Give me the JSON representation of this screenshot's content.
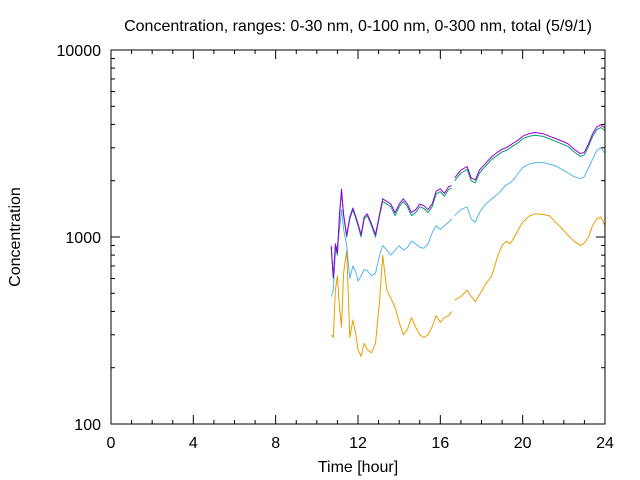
{
  "chart_data": {
    "type": "line",
    "title": "Concentration, ranges: 0-30 nm, 0-100 nm, 0-300 nm, total (5/9/1)",
    "xlabel": "Time [hour]",
    "ylabel": "Concentration",
    "xlim": [
      0,
      24
    ],
    "ylim": [
      100,
      10000
    ],
    "yscale": "log",
    "x_ticks": [
      0,
      4,
      8,
      12,
      16,
      20,
      24
    ],
    "x_tick_labels": [
      "0",
      "4",
      "8",
      "12",
      "16",
      "20",
      "24"
    ],
    "y_ticks": [
      100,
      1000,
      10000
    ],
    "y_tick_labels": [
      "100",
      "1000",
      "10000"
    ],
    "grid": false,
    "legend": "none",
    "series": [
      {
        "color": "#e69f00",
        "segments": [
          [
            [
              10.7,
              300
            ],
            [
              10.8,
              290
            ],
            [
              10.9,
              520
            ],
            [
              11.0,
              620
            ],
            [
              11.1,
              420
            ],
            [
              11.2,
              330
            ],
            [
              11.3,
              640
            ],
            [
              11.45,
              850
            ],
            [
              11.6,
              290
            ],
            [
              11.75,
              360
            ],
            [
              11.9,
              300
            ],
            [
              12.0,
              250
            ],
            [
              12.15,
              230
            ],
            [
              12.3,
              270
            ],
            [
              12.45,
              250
            ],
            [
              12.65,
              240
            ],
            [
              12.85,
              270
            ],
            [
              13.05,
              460
            ],
            [
              13.2,
              800
            ],
            [
              13.4,
              520
            ],
            [
              13.6,
              470
            ],
            [
              13.8,
              420
            ],
            [
              14.0,
              350
            ],
            [
              14.2,
              300
            ],
            [
              14.4,
              320
            ],
            [
              14.6,
              370
            ],
            [
              14.8,
              330
            ],
            [
              15.0,
              300
            ],
            [
              15.2,
              290
            ],
            [
              15.4,
              300
            ],
            [
              15.6,
              330
            ],
            [
              15.8,
              380
            ],
            [
              16.0,
              350
            ],
            [
              16.2,
              370
            ],
            [
              16.4,
              380
            ],
            [
              16.55,
              400
            ]
          ],
          [
            [
              16.7,
              460
            ],
            [
              17.0,
              480
            ],
            [
              17.3,
              520
            ],
            [
              17.5,
              480
            ],
            [
              17.7,
              450
            ],
            [
              17.9,
              490
            ],
            [
              18.2,
              560
            ],
            [
              18.5,
              620
            ],
            [
              18.8,
              800
            ],
            [
              19.0,
              900
            ],
            [
              19.2,
              950
            ],
            [
              19.4,
              920
            ],
            [
              19.6,
              1000
            ],
            [
              19.8,
              1100
            ],
            [
              20.0,
              1200
            ],
            [
              20.3,
              1290
            ],
            [
              20.6,
              1330
            ],
            [
              21.0,
              1320
            ],
            [
              21.3,
              1300
            ],
            [
              21.6,
              1200
            ],
            [
              21.9,
              1110
            ],
            [
              22.2,
              1020
            ],
            [
              22.5,
              950
            ],
            [
              22.8,
              900
            ],
            [
              23.0,
              930
            ],
            [
              23.2,
              1000
            ],
            [
              23.4,
              1150
            ],
            [
              23.6,
              1250
            ],
            [
              23.8,
              1280
            ],
            [
              24.0,
              1150
            ]
          ]
        ]
      },
      {
        "color": "#56b4e9",
        "segments": [
          [
            [
              10.7,
              480
            ],
            [
              10.8,
              520
            ],
            [
              10.9,
              820
            ],
            [
              11.0,
              900
            ],
            [
              11.1,
              1100
            ],
            [
              11.2,
              1400
            ],
            [
              11.3,
              1100
            ],
            [
              11.45,
              900
            ],
            [
              11.6,
              600
            ],
            [
              11.75,
              700
            ],
            [
              11.9,
              650
            ],
            [
              12.0,
              580
            ],
            [
              12.15,
              620
            ],
            [
              12.3,
              670
            ],
            [
              12.45,
              660
            ],
            [
              12.65,
              620
            ],
            [
              12.85,
              640
            ],
            [
              13.05,
              800
            ],
            [
              13.2,
              900
            ],
            [
              13.4,
              850
            ],
            [
              13.6,
              800
            ],
            [
              13.8,
              850
            ],
            [
              14.0,
              900
            ],
            [
              14.2,
              850
            ],
            [
              14.4,
              880
            ],
            [
              14.6,
              950
            ],
            [
              14.8,
              920
            ],
            [
              15.0,
              880
            ],
            [
              15.2,
              870
            ],
            [
              15.4,
              920
            ],
            [
              15.6,
              1050
            ],
            [
              15.8,
              1150
            ],
            [
              16.0,
              1100
            ],
            [
              16.2,
              1150
            ],
            [
              16.4,
              1200
            ],
            [
              16.55,
              1250
            ]
          ],
          [
            [
              16.7,
              1300
            ],
            [
              17.0,
              1400
            ],
            [
              17.3,
              1450
            ],
            [
              17.5,
              1250
            ],
            [
              17.7,
              1200
            ],
            [
              17.9,
              1350
            ],
            [
              18.2,
              1500
            ],
            [
              18.5,
              1600
            ],
            [
              18.8,
              1700
            ],
            [
              19.0,
              1800
            ],
            [
              19.2,
              1900
            ],
            [
              19.4,
              1950
            ],
            [
              19.6,
              2050
            ],
            [
              19.8,
              2200
            ],
            [
              20.0,
              2350
            ],
            [
              20.3,
              2450
            ],
            [
              20.6,
              2500
            ],
            [
              21.0,
              2500
            ],
            [
              21.3,
              2450
            ],
            [
              21.6,
              2400
            ],
            [
              21.9,
              2300
            ],
            [
              22.2,
              2200
            ],
            [
              22.5,
              2100
            ],
            [
              22.8,
              2050
            ],
            [
              23.0,
              2100
            ],
            [
              23.2,
              2350
            ],
            [
              23.4,
              2600
            ],
            [
              23.6,
              2900
            ],
            [
              23.8,
              3000
            ],
            [
              24.0,
              2800
            ]
          ]
        ]
      },
      {
        "color": "#009e73",
        "segments": [
          [
            [
              10.7,
              880
            ],
            [
              10.8,
              600
            ],
            [
              10.9,
              900
            ],
            [
              11.0,
              800
            ],
            [
              11.1,
              1300
            ],
            [
              11.2,
              1750
            ],
            [
              11.3,
              1300
            ],
            [
              11.45,
              1000
            ],
            [
              11.6,
              1250
            ],
            [
              11.75,
              1400
            ],
            [
              11.9,
              1250
            ],
            [
              12.0,
              1150
            ],
            [
              12.15,
              1000
            ],
            [
              12.3,
              1250
            ],
            [
              12.45,
              1300
            ],
            [
              12.65,
              1150
            ],
            [
              12.85,
              1000
            ],
            [
              13.05,
              1300
            ],
            [
              13.2,
              1550
            ],
            [
              13.4,
              1500
            ],
            [
              13.6,
              1450
            ],
            [
              13.8,
              1300
            ],
            [
              14.0,
              1450
            ],
            [
              14.2,
              1550
            ],
            [
              14.4,
              1450
            ],
            [
              14.6,
              1300
            ],
            [
              14.8,
              1350
            ],
            [
              15.0,
              1450
            ],
            [
              15.2,
              1420
            ],
            [
              15.4,
              1350
            ],
            [
              15.6,
              1450
            ],
            [
              15.8,
              1700
            ],
            [
              16.0,
              1750
            ],
            [
              16.2,
              1650
            ],
            [
              16.4,
              1800
            ],
            [
              16.55,
              1820
            ]
          ],
          [
            [
              16.7,
              2000
            ],
            [
              17.0,
              2200
            ],
            [
              17.3,
              2300
            ],
            [
              17.5,
              2000
            ],
            [
              17.7,
              1950
            ],
            [
              17.9,
              2200
            ],
            [
              18.2,
              2400
            ],
            [
              18.5,
              2600
            ],
            [
              18.8,
              2750
            ],
            [
              19.0,
              2850
            ],
            [
              19.2,
              2900
            ],
            [
              19.4,
              3000
            ],
            [
              19.6,
              3100
            ],
            [
              19.8,
              3200
            ],
            [
              20.0,
              3350
            ],
            [
              20.3,
              3450
            ],
            [
              20.6,
              3500
            ],
            [
              21.0,
              3450
            ],
            [
              21.3,
              3350
            ],
            [
              21.6,
              3250
            ],
            [
              21.9,
              3150
            ],
            [
              22.2,
              3050
            ],
            [
              22.5,
              2850
            ],
            [
              22.8,
              2700
            ],
            [
              23.0,
              2750
            ],
            [
              23.2,
              3050
            ],
            [
              23.4,
              3450
            ],
            [
              23.6,
              3750
            ],
            [
              23.8,
              3850
            ],
            [
              24.0,
              3700
            ]
          ]
        ]
      },
      {
        "color": "#9400d3",
        "segments": [
          [
            [
              10.7,
              900
            ],
            [
              10.8,
              610
            ],
            [
              10.9,
              920
            ],
            [
              11.0,
              820
            ],
            [
              11.1,
              1320
            ],
            [
              11.2,
              1800
            ],
            [
              11.3,
              1320
            ],
            [
              11.45,
              1020
            ],
            [
              11.6,
              1280
            ],
            [
              11.75,
              1430
            ],
            [
              11.9,
              1280
            ],
            [
              12.0,
              1180
            ],
            [
              12.15,
              1030
            ],
            [
              12.3,
              1280
            ],
            [
              12.45,
              1330
            ],
            [
              12.65,
              1180
            ],
            [
              12.85,
              1030
            ],
            [
              13.05,
              1330
            ],
            [
              13.2,
              1600
            ],
            [
              13.4,
              1550
            ],
            [
              13.6,
              1500
            ],
            [
              13.8,
              1350
            ],
            [
              14.0,
              1500
            ],
            [
              14.2,
              1600
            ],
            [
              14.4,
              1500
            ],
            [
              14.6,
              1350
            ],
            [
              14.8,
              1400
            ],
            [
              15.0,
              1500
            ],
            [
              15.2,
              1470
            ],
            [
              15.4,
              1400
            ],
            [
              15.6,
              1500
            ],
            [
              15.8,
              1760
            ],
            [
              16.0,
              1810
            ],
            [
              16.2,
              1710
            ],
            [
              16.4,
              1860
            ],
            [
              16.55,
              1880
            ]
          ],
          [
            [
              16.7,
              2070
            ],
            [
              17.0,
              2280
            ],
            [
              17.3,
              2380
            ],
            [
              17.5,
              2070
            ],
            [
              17.7,
              2020
            ],
            [
              17.9,
              2280
            ],
            [
              18.2,
              2480
            ],
            [
              18.5,
              2690
            ],
            [
              18.8,
              2850
            ],
            [
              19.0,
              2950
            ],
            [
              19.2,
              3000
            ],
            [
              19.4,
              3100
            ],
            [
              19.6,
              3200
            ],
            [
              19.8,
              3310
            ],
            [
              20.0,
              3460
            ],
            [
              20.3,
              3570
            ],
            [
              20.6,
              3620
            ],
            [
              21.0,
              3570
            ],
            [
              21.3,
              3460
            ],
            [
              21.6,
              3360
            ],
            [
              21.9,
              3260
            ],
            [
              22.2,
              3150
            ],
            [
              22.5,
              2950
            ],
            [
              22.8,
              2790
            ],
            [
              23.0,
              2840
            ],
            [
              23.2,
              3150
            ],
            [
              23.4,
              3570
            ],
            [
              23.6,
              3880
            ],
            [
              23.8,
              3980
            ],
            [
              24.0,
              3830
            ]
          ]
        ]
      }
    ]
  }
}
